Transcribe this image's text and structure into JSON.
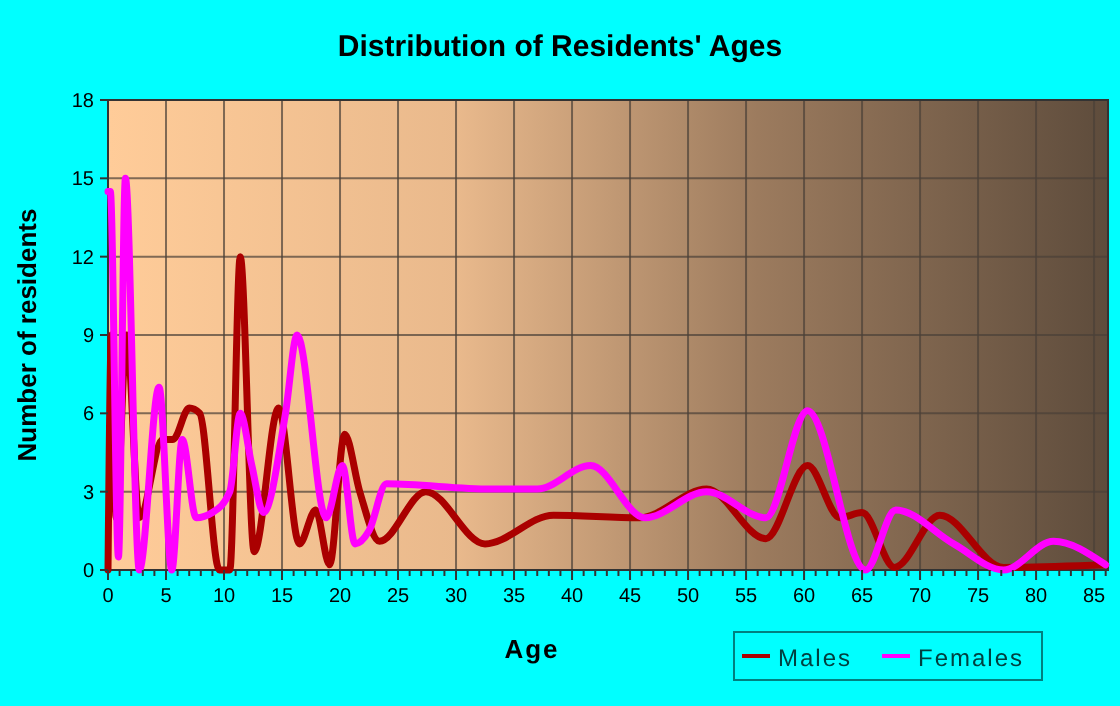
{
  "chart_data": {
    "type": "line",
    "title": "Distribution of Residents' Ages",
    "xlabel": "Age",
    "ylabel": "Number of residents",
    "xlim": [
      0,
      86.2
    ],
    "ylim": [
      0,
      18
    ],
    "xticks": [
      0,
      5,
      10,
      15,
      20,
      25,
      30,
      35,
      40,
      45,
      50,
      55,
      60,
      65,
      70,
      75,
      80,
      85,
      {
        "value": 1,
        "label": null
      },
      {
        "value": 2,
        "label": null
      },
      {
        "value": 3,
        "label": null
      },
      {
        "value": 4,
        "label": null
      },
      {
        "value": 6,
        "label": null
      },
      {
        "value": 7,
        "label": null
      },
      {
        "value": 8,
        "label": null
      },
      {
        "value": 9,
        "label": null
      },
      {
        "value": 11,
        "label": null
      },
      {
        "value": 12,
        "label": null
      },
      {
        "value": 13,
        "label": null
      },
      {
        "value": 14,
        "label": null
      },
      {
        "value": 16,
        "label": null
      },
      {
        "value": 17,
        "label": null
      },
      {
        "value": 18,
        "label": null
      },
      {
        "value": 19,
        "label": null
      },
      {
        "value": 21,
        "label": null
      },
      {
        "value": 22,
        "label": null
      },
      {
        "value": 23,
        "label": null
      },
      {
        "value": 24,
        "label": null
      },
      {
        "value": 26,
        "label": null
      },
      {
        "value": 27,
        "label": null
      },
      {
        "value": 28,
        "label": null
      },
      {
        "value": 29,
        "label": null
      },
      {
        "value": 31,
        "label": null
      },
      {
        "value": 32,
        "label": null
      },
      {
        "value": 33,
        "label": null
      },
      {
        "value": 34,
        "label": null
      },
      {
        "value": 36,
        "label": null
      },
      {
        "value": 37,
        "label": null
      },
      {
        "value": 38,
        "label": null
      },
      {
        "value": 39,
        "label": null
      },
      {
        "value": 41,
        "label": null
      },
      {
        "value": 42,
        "label": null
      },
      {
        "value": 43,
        "label": null
      },
      {
        "value": 44,
        "label": null
      },
      {
        "value": 46,
        "label": null
      },
      {
        "value": 47,
        "label": null
      },
      {
        "value": 48,
        "label": null
      },
      {
        "value": 49,
        "label": null
      },
      {
        "value": 51,
        "label": null
      },
      {
        "value": 52,
        "label": null
      },
      {
        "value": 53,
        "label": null
      },
      {
        "value": 54,
        "label": null
      },
      {
        "value": 56,
        "label": null
      },
      {
        "value": 57,
        "label": null
      },
      {
        "value": 58,
        "label": null
      },
      {
        "value": 59,
        "label": null
      },
      {
        "value": 61,
        "label": null
      },
      {
        "value": 62,
        "label": null
      },
      {
        "value": 63,
        "label": null
      },
      {
        "value": 64,
        "label": null
      },
      {
        "value": 66,
        "label": null
      },
      {
        "value": 67,
        "label": null
      },
      {
        "value": 68,
        "label": null
      },
      {
        "value": 69,
        "label": null
      },
      {
        "value": 71,
        "label": null
      },
      {
        "value": 72,
        "label": null
      },
      {
        "value": 73,
        "label": null
      },
      {
        "value": 74,
        "label": null
      },
      {
        "value": 76,
        "label": null
      },
      {
        "value": 77,
        "label": null
      },
      {
        "value": 78,
        "label": null
      },
      {
        "value": 79,
        "label": null
      },
      {
        "value": 81,
        "label": null
      },
      {
        "value": 82,
        "label": null
      },
      {
        "value": 83,
        "label": null
      },
      {
        "value": 84,
        "label": null
      },
      {
        "value": 86,
        "label": null
      }
    ],
    "yticks": [
      0,
      3,
      6,
      9,
      12,
      15,
      18
    ],
    "grid": true,
    "legend": "bottom right",
    "marker": "none",
    "line_style": "solid",
    "series": [
      {
        "name": "Males",
        "color": "#aa0000",
        "x": [
          0,
          0.3,
          0.7,
          1.6,
          2.7,
          4.7,
          5.6,
          7,
          7.9,
          9.6,
          10.5,
          11.4,
          12.6,
          14.7,
          16.5,
          17.9,
          19.1,
          20.4,
          21.7,
          23.4,
          27.4,
          32.5,
          38.4,
          45.8,
          51.6,
          56.7,
          60.3,
          63.1,
          65,
          67.8,
          71.7,
          77.2,
          86
        ],
        "values": [
          0,
          9,
          2,
          9,
          2,
          5,
          5,
          6.2,
          6,
          0,
          0,
          12,
          0.7,
          6.2,
          1,
          2.3,
          0.2,
          5.2,
          3,
          1.1,
          3,
          1,
          2.1,
          2,
          3.1,
          1.2,
          4,
          2,
          2.2,
          0.1,
          2.1,
          0.1,
          0.2
        ]
      },
      {
        "name": "Females",
        "color": "#ff00ff",
        "x": [
          0,
          0.2,
          0.9,
          1.5,
          2.7,
          4.4,
          5.5,
          6.4,
          7.6,
          9,
          10.5,
          11.4,
          12.4,
          13.4,
          15.3,
          16.3,
          18.8,
          20.2,
          21.3,
          22.5,
          24,
          33,
          37,
          41.6,
          46.3,
          51.6,
          56.7,
          60.3,
          65.3,
          67.9,
          72.9,
          77.2,
          81.5,
          86
        ],
        "values": [
          14.5,
          14.5,
          0.5,
          15,
          0,
          7,
          0,
          5,
          2,
          2.2,
          3,
          6,
          4,
          2.2,
          6,
          9,
          2,
          4,
          1,
          1.5,
          3.3,
          3.1,
          3.1,
          4,
          2,
          3,
          2,
          6.1,
          0,
          2.3,
          1,
          0,
          1.1,
          0.2
        ]
      }
    ]
  }
}
